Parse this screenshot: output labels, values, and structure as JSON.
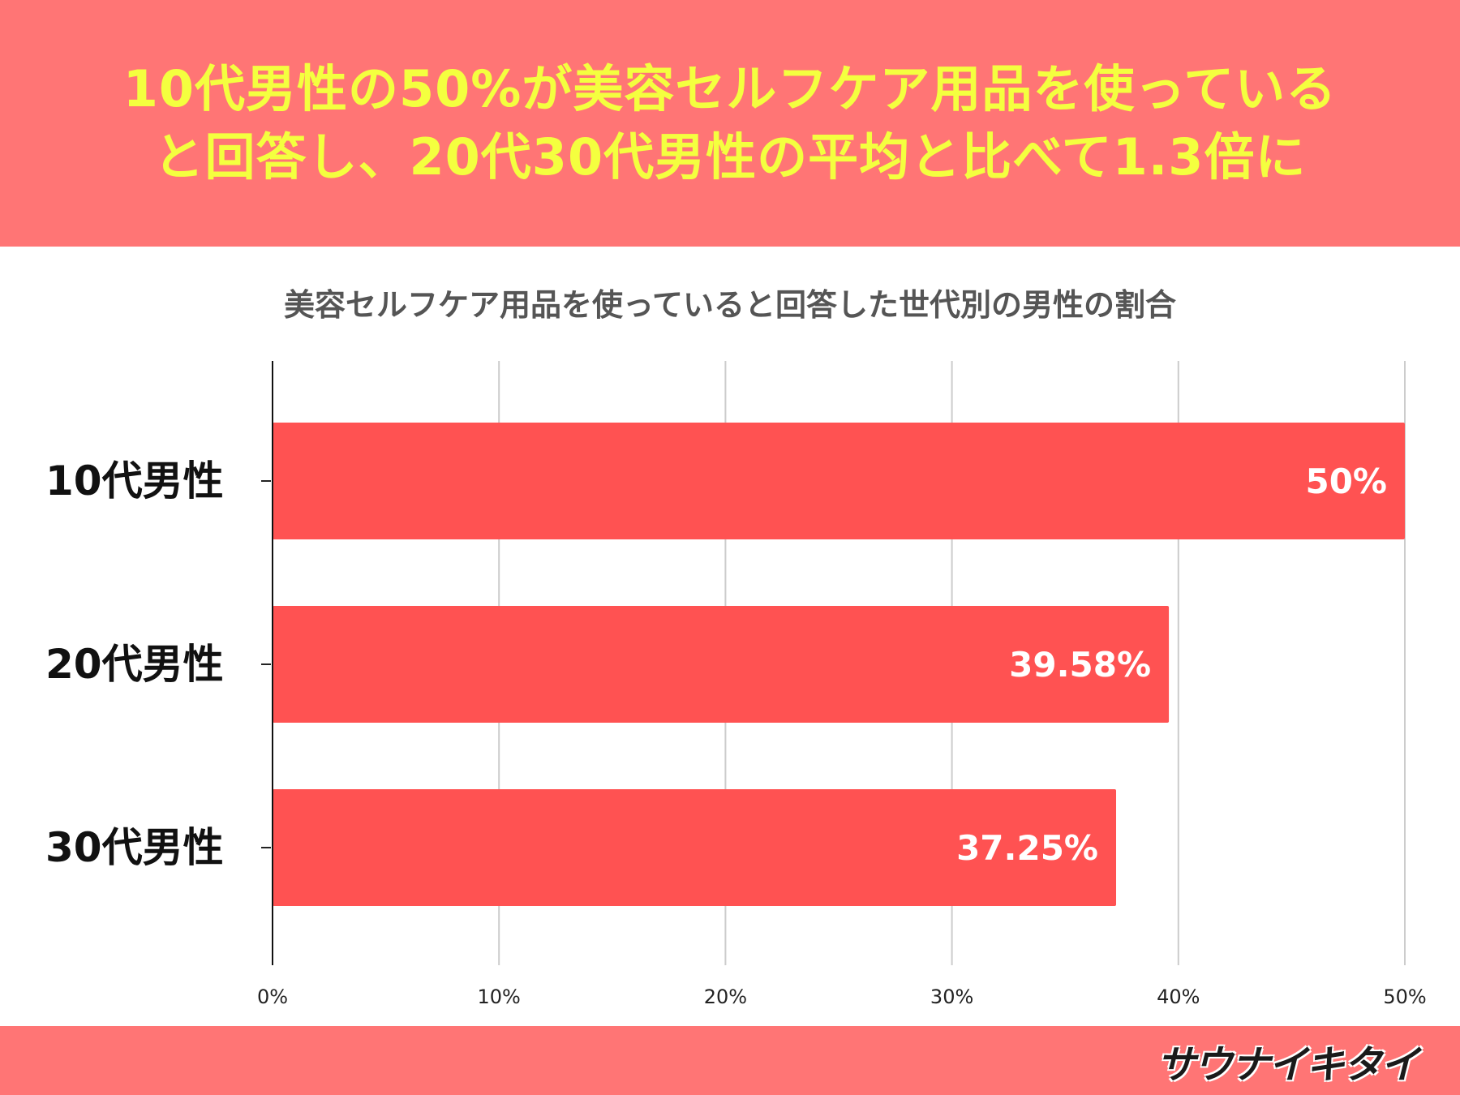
{
  "header": {
    "line1": "10代男性の50%が美容セルフケア用品を使っている",
    "line2": "と回答し、20代30代男性の平均と比べて1.3倍に"
  },
  "chart_data": {
    "type": "bar",
    "orientation": "horizontal",
    "title": "美容セルフケア用品を使っていると回答した世代別の男性の割合",
    "categories": [
      "10代男性",
      "20代男性",
      "30代男性"
    ],
    "values": [
      50,
      39.58,
      37.25
    ],
    "data_labels": [
      "50%",
      "39.58%",
      "37.25%"
    ],
    "xlim": [
      0,
      50
    ],
    "x_ticks": [
      "0%",
      "10%",
      "20%",
      "30%",
      "40%",
      "50%"
    ],
    "grid": true,
    "bar_color": "#ff5252"
  },
  "colors": {
    "header_bg": "#ff7575",
    "header_text": "#f4ff3f",
    "bar": "#ff5252"
  },
  "footer": {
    "logo_text": "サウナイキタイ"
  }
}
